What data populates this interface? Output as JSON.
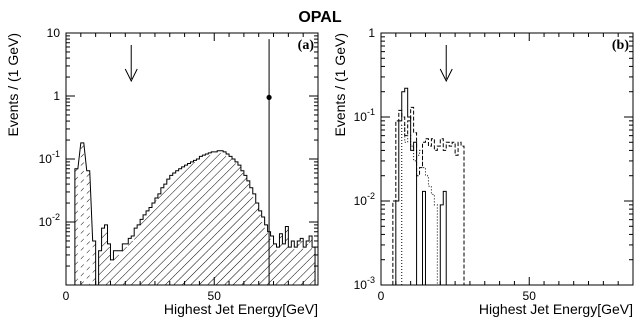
{
  "figure_title": "OPAL",
  "chart_data": [
    {
      "type": "bar",
      "panel_label": "(a)",
      "xlabel": "Highest Jet Energy[GeV]",
      "ylabel": "Events / (1 GeV)",
      "xlim": [
        0,
        85
      ],
      "ylim": [
        0.001,
        10
      ],
      "yscale": "log",
      "x_ticks": [
        0,
        50
      ],
      "y_tick_labels": [
        {
          "base": "10",
          "exp": "",
          "value": 10
        },
        {
          "base": "1",
          "exp": "",
          "value": 1
        },
        {
          "base": "10",
          "exp": "-1",
          "value": 0.1
        },
        {
          "base": "10",
          "exp": "-2",
          "value": 0.01
        }
      ],
      "arrow_x": 22,
      "bin_width": 1,
      "series": [
        {
          "role": "simulation",
          "style": "hatched histogram",
          "x": [
            3,
            5,
            7,
            9,
            10,
            11,
            12,
            13,
            14,
            15,
            16,
            17,
            18,
            19,
            20,
            21,
            22,
            23,
            24,
            25,
            26,
            27,
            28,
            29,
            30,
            31,
            32,
            33,
            34,
            35,
            36,
            37,
            38,
            39,
            40,
            41,
            42,
            43,
            44,
            45,
            46,
            47,
            48,
            49,
            50,
            51,
            52,
            53,
            54,
            55,
            56,
            57,
            58,
            59,
            60,
            61,
            62,
            63,
            64,
            65,
            66,
            67,
            68,
            69,
            70,
            71,
            72,
            73,
            74,
            75,
            76,
            77,
            78,
            79,
            80,
            81,
            82,
            83
          ],
          "values": [
            0.07,
            0.17,
            0.06,
            0.0045,
            0.0008,
            0.003,
            0.007,
            0.008,
            0.004,
            0.002,
            0.003,
            0.003,
            0.003,
            0.004,
            0.004,
            0.005,
            0.005,
            0.007,
            0.008,
            0.01,
            0.012,
            0.014,
            0.016,
            0.018,
            0.022,
            0.026,
            0.032,
            0.038,
            0.045,
            0.05,
            0.055,
            0.06,
            0.065,
            0.07,
            0.075,
            0.08,
            0.085,
            0.09,
            0.095,
            0.1,
            0.105,
            0.11,
            0.115,
            0.12,
            0.12,
            0.125,
            0.125,
            0.12,
            0.11,
            0.1,
            0.09,
            0.085,
            0.075,
            0.06,
            0.05,
            0.04,
            0.03,
            0.025,
            0.017,
            0.013,
            0.01,
            0.008,
            0.006,
            0.005,
            0.004,
            0.0035,
            0.006,
            0.004,
            0.008,
            0.0035,
            0.0045,
            0.0035,
            0.0045,
            0.005,
            0.0035,
            0.0045,
            0.0055,
            0.0035
          ]
        },
        {
          "role": "data",
          "style": "step line",
          "x": [
            3,
            5,
            7,
            9,
            10,
            11,
            12,
            13,
            14,
            15,
            16,
            17,
            18,
            19,
            20,
            21,
            22,
            23,
            24,
            25,
            26,
            27,
            28,
            29,
            30,
            31,
            32,
            33,
            34,
            35,
            36,
            37,
            38,
            39,
            40,
            41,
            42,
            43,
            44,
            45,
            46,
            47,
            48,
            49,
            50,
            51,
            52,
            53,
            54,
            55,
            56,
            57,
            58,
            59,
            60,
            61,
            62,
            63,
            64,
            65,
            66,
            67,
            68,
            69,
            70,
            71,
            72,
            73,
            74,
            75,
            76,
            77,
            78,
            79,
            80,
            81,
            82,
            83
          ],
          "values": [
            0.07,
            0.18,
            0.065,
            0.005,
            0.0009,
            0.0035,
            0.008,
            0.009,
            0.0045,
            0.0025,
            0.0035,
            0.0035,
            0.0035,
            0.0045,
            0.0045,
            0.0055,
            0.006,
            0.008,
            0.009,
            0.011,
            0.013,
            0.015,
            0.017,
            0.02,
            0.024,
            0.028,
            0.035,
            0.04,
            0.048,
            0.055,
            0.06,
            0.065,
            0.07,
            0.075,
            0.08,
            0.085,
            0.09,
            0.095,
            0.1,
            0.11,
            0.115,
            0.12,
            0.125,
            0.13,
            0.13,
            0.135,
            0.135,
            0.13,
            0.12,
            0.11,
            0.1,
            0.09,
            0.08,
            0.065,
            0.055,
            0.045,
            0.035,
            0.028,
            0.02,
            0.015,
            0.012,
            0.009,
            0.007,
            0.006,
            0.0045,
            0.004,
            0.0065,
            0.0045,
            0.0085,
            0.004,
            0.005,
            0.004,
            0.005,
            0.0055,
            0.004,
            0.005,
            0.006,
            0.004
          ]
        },
        {
          "role": "point",
          "style": "filled marker with error bar",
          "x": [
            68
          ],
          "values": [
            0.95
          ],
          "error_upper": [
            8
          ],
          "error_lower": [
            0.001
          ]
        }
      ]
    },
    {
      "type": "bar",
      "panel_label": "(b)",
      "xlabel": "Highest Jet Energy[GeV]",
      "ylabel": "Events / (1 GeV)",
      "xlim": [
        0,
        85
      ],
      "ylim": [
        0.001,
        1
      ],
      "yscale": "log",
      "x_ticks": [
        0,
        50
      ],
      "y_tick_labels": [
        {
          "base": "1",
          "exp": "",
          "value": 1
        },
        {
          "base": "10",
          "exp": "-1",
          "value": 0.1
        },
        {
          "base": "10",
          "exp": "-2",
          "value": 0.01
        },
        {
          "base": "10",
          "exp": "-3",
          "value": 0.001
        }
      ],
      "arrow_x": 22,
      "bin_width": 1,
      "series": [
        {
          "role": "signal-1",
          "style": "solid step line",
          "x": [
            4,
            5,
            6,
            7,
            8,
            9,
            10,
            11,
            12,
            13,
            14,
            15,
            16,
            17,
            18,
            19,
            20,
            21,
            22,
            23
          ],
          "values": [
            0.0,
            0.01,
            0.09,
            0.2,
            0.22,
            0.1,
            0.04,
            0.05,
            0.0,
            0.0,
            0.013,
            0.0,
            0.0,
            0.0,
            0.0,
            0.0,
            0.009,
            0.013,
            0.0,
            0.0
          ]
        },
        {
          "role": "signal-2",
          "style": "dashed step line",
          "x": [
            2,
            3,
            4,
            5,
            6,
            7,
            8,
            9,
            10,
            11,
            12,
            13,
            14,
            15,
            16,
            17,
            18,
            19,
            20,
            21,
            22,
            23,
            24,
            25,
            26,
            27,
            28
          ],
          "values": [
            0.0,
            0.001,
            0.01,
            0.09,
            0.12,
            0.1,
            0.06,
            0.09,
            0.13,
            0.065,
            0.02,
            0.025,
            0.05,
            0.055,
            0.045,
            0.055,
            0.04,
            0.045,
            0.055,
            0.04,
            0.05,
            0.045,
            0.05,
            0.035,
            0.05,
            0.045,
            0.0
          ]
        },
        {
          "role": "signal-3",
          "style": "dotted step line",
          "x": [
            6,
            7,
            8,
            9,
            10,
            11,
            12,
            13,
            14,
            15,
            16,
            17,
            18,
            19
          ],
          "values": [
            0.0,
            0.08,
            0.05,
            0.06,
            0.045,
            0.03,
            0.035,
            0.04,
            0.025,
            0.02,
            0.015,
            0.012,
            0.009,
            0.0
          ]
        }
      ]
    }
  ]
}
